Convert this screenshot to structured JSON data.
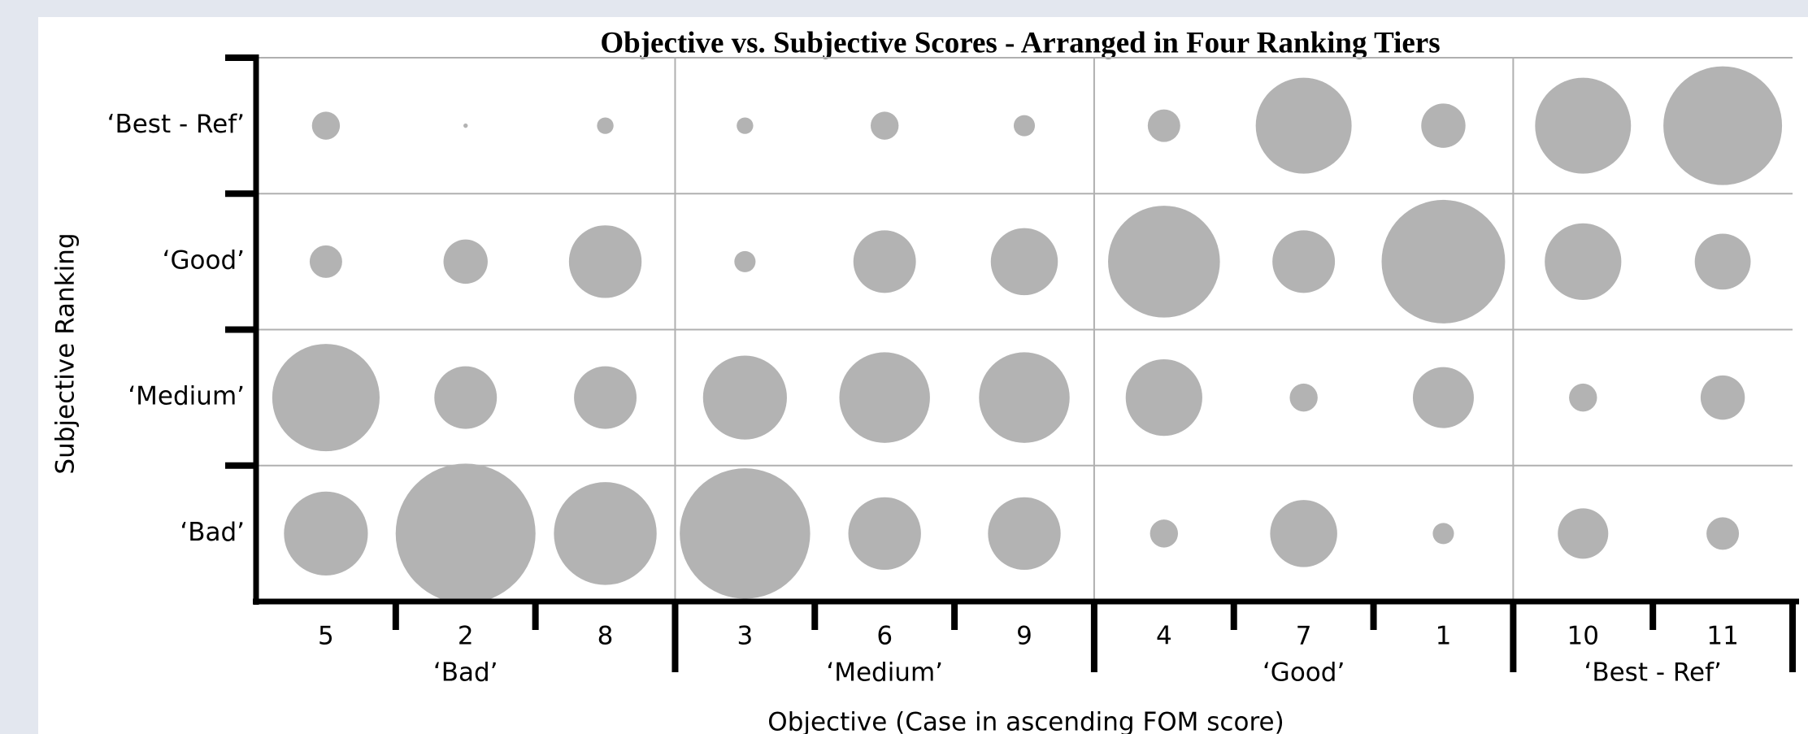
{
  "chart_data": {
    "type": "bubble-grid",
    "title": "Objective vs. Subjective Scores - Arranged in Four Ranking Tiers",
    "x_label": "Objective (Case in ascending FOM score)",
    "y_label": "Subjective Ranking",
    "groups": [
      {
        "name": "‘Bad’",
        "categories": [
          "5",
          "2",
          "8"
        ]
      },
      {
        "name": "‘Medium’",
        "categories": [
          "3",
          "6",
          "9"
        ]
      },
      {
        "name": "‘Good’",
        "categories": [
          "4",
          "7",
          "1"
        ]
      },
      {
        "name": "‘Best - Ref’",
        "categories": [
          "10",
          "11"
        ]
      }
    ],
    "y_categories": [
      "‘Best - Ref’",
      "‘Good’",
      "‘Medium’",
      "‘Bad’"
    ],
    "values": [
      [
        4,
        0.1,
        1.4,
        1.4,
        4,
        2.3,
        5.4,
        47,
        10,
        47,
        72
      ],
      [
        5.4,
        10,
        27,
        2.3,
        20,
        23,
        64,
        20,
        78,
        30,
        16
      ],
      [
        59,
        20,
        20,
        36,
        42,
        42,
        30,
        4,
        19,
        4,
        10
      ],
      [
        36,
        100,
        54,
        87,
        27,
        27,
        4,
        23,
        2.3,
        13,
        5.4
      ]
    ],
    "color": "#b3b3b3",
    "grid": true
  }
}
